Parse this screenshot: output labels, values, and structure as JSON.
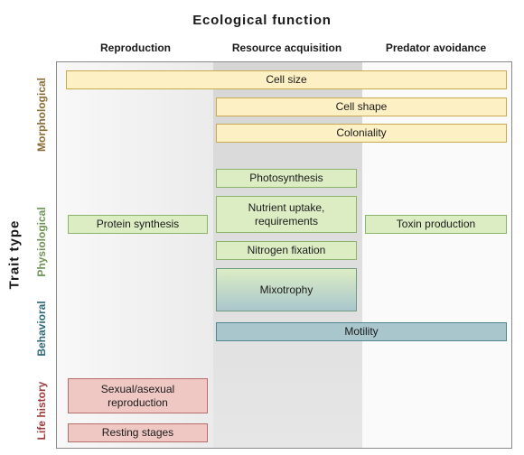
{
  "title": "Ecological function",
  "columns": [
    "Reproduction",
    "Resource acquisition",
    "Predator avoidance"
  ],
  "axis_title": "Trait type",
  "rows": [
    {
      "label": "Morphological",
      "color": "#8a6d35"
    },
    {
      "label": "Physiological",
      "color": "#6e9455"
    },
    {
      "label": "Behavioral",
      "color": "#2e6a78"
    },
    {
      "label": "Life history",
      "color": "#a03c3c"
    }
  ],
  "traits": {
    "cell_size": "Cell size",
    "cell_shape": "Cell shape",
    "coloniality": "Coloniality",
    "photosynthesis": "Photosynthesis",
    "protein_synthesis": "Protein synthesis",
    "nutrient_uptake": "Nutrient uptake, requirements",
    "toxin_production": "Toxin production",
    "nitrogen_fixation": "Nitrogen fixation",
    "mixotrophy": "Mixotrophy",
    "motility": "Motility",
    "sexual_asexual": "Sexual/asexual reproduction",
    "resting_stages": "Resting stages"
  },
  "colors": {
    "morphological_fill": "#fdf0c4",
    "morphological_border": "#c9a84e",
    "physiological_fill": "#dcedc4",
    "physiological_border": "#8ab46a",
    "behavioral_fill": "#a9c6cc",
    "behavioral_border": "#4e8590",
    "lifehistory_fill": "#efc8c4",
    "lifehistory_border": "#b86c6c",
    "column_light": "#f2f2f2",
    "column_dark": "#dcdcdc"
  }
}
